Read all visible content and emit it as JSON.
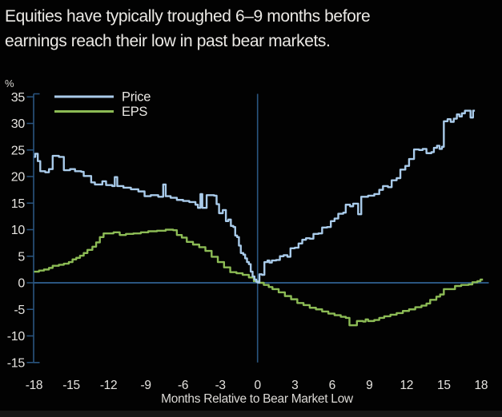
{
  "title": {
    "line1": "Equities have typically troughed 6–9 months before",
    "line2": "earnings reach their low in past bear markets."
  },
  "chart_data": {
    "type": "step-line",
    "title": "",
    "x_axis": {
      "label": "Months Relative to Bear Market Low",
      "ticks": [
        -18,
        -15,
        -12,
        -9,
        -6,
        -3,
        0,
        3,
        6,
        9,
        12,
        15,
        18
      ],
      "range": [
        -18,
        18.6
      ]
    },
    "y_axis": {
      "label": "%",
      "ticks": [
        35,
        30,
        25,
        20,
        15,
        10,
        5,
        0,
        -5,
        -10,
        -15
      ],
      "range": [
        -15,
        35
      ]
    },
    "reference_lines": {
      "horizontal_at": 0,
      "vertical_at": 0
    },
    "legend_position": "top-left-inside",
    "grid": false,
    "colors": {
      "background": "#020202",
      "axis": "#2a5580",
      "tick_text": "#e6e4e0",
      "price": "#a9cbea",
      "eps": "#8cbb55"
    },
    "series": [
      {
        "name": "Price",
        "color": "#a9cbea",
        "points": [
          [
            -18.0,
            23.7
          ],
          [
            -17.9,
            24.3
          ],
          [
            -17.7,
            22.9
          ],
          [
            -17.5,
            21.0
          ],
          [
            -17.1,
            20.8
          ],
          [
            -16.8,
            21.4
          ],
          [
            -16.5,
            23.9
          ],
          [
            -16.0,
            23.7
          ],
          [
            -15.6,
            21.2
          ],
          [
            -15.1,
            21.4
          ],
          [
            -14.7,
            21.0
          ],
          [
            -14.2,
            20.9
          ],
          [
            -14.0,
            20.1
          ],
          [
            -13.4,
            18.9
          ],
          [
            -13.1,
            18.5
          ],
          [
            -12.5,
            19.1
          ],
          [
            -12.2,
            18.4
          ],
          [
            -11.7,
            18.2
          ],
          [
            -11.5,
            19.9
          ],
          [
            -11.3,
            18.2
          ],
          [
            -10.8,
            17.9
          ],
          [
            -10.2,
            17.6
          ],
          [
            -9.6,
            17.2
          ],
          [
            -9.1,
            16.3
          ],
          [
            -8.6,
            16.5
          ],
          [
            -8.0,
            16.2
          ],
          [
            -7.6,
            18.5
          ],
          [
            -7.4,
            16.3
          ],
          [
            -7.0,
            16.0
          ],
          [
            -6.5,
            15.6
          ],
          [
            -6.0,
            15.4
          ],
          [
            -5.5,
            15.2
          ],
          [
            -5.0,
            14.7
          ],
          [
            -4.8,
            14.1
          ],
          [
            -4.6,
            16.7
          ],
          [
            -4.45,
            14.1
          ],
          [
            -4.1,
            16.5
          ],
          [
            -3.5,
            16.4
          ],
          [
            -3.3,
            14.8
          ],
          [
            -3.1,
            13.1
          ],
          [
            -2.8,
            13.7
          ],
          [
            -2.55,
            11.6
          ],
          [
            -2.35,
            11.9
          ],
          [
            -2.15,
            10.7
          ],
          [
            -1.95,
            10.5
          ],
          [
            -1.8,
            8.9
          ],
          [
            -1.65,
            8.6
          ],
          [
            -1.5,
            7.0
          ],
          [
            -1.35,
            5.6
          ],
          [
            -1.15,
            5.3
          ],
          [
            -1.0,
            4.6
          ],
          [
            -0.85,
            3.9
          ],
          [
            -0.7,
            3.5
          ],
          [
            -0.55,
            2.1
          ],
          [
            -0.4,
            1.2
          ],
          [
            -0.25,
            0.6
          ],
          [
            -0.1,
            0.2
          ],
          [
            0.0,
            0.05
          ],
          [
            0.15,
            1.6
          ],
          [
            0.35,
            1.5
          ],
          [
            0.55,
            3.9
          ],
          [
            0.8,
            4.2
          ],
          [
            0.95,
            3.8
          ],
          [
            1.15,
            4.2
          ],
          [
            1.5,
            4.3
          ],
          [
            1.8,
            5.0
          ],
          [
            2.1,
            5.2
          ],
          [
            2.4,
            4.9
          ],
          [
            2.65,
            6.5
          ],
          [
            3.0,
            6.6
          ],
          [
            3.3,
            7.4
          ],
          [
            3.6,
            8.1
          ],
          [
            3.9,
            8.4
          ],
          [
            4.2,
            8.3
          ],
          [
            4.5,
            9.2
          ],
          [
            4.9,
            9.3
          ],
          [
            5.2,
            10.4
          ],
          [
            5.6,
            10.5
          ],
          [
            5.9,
            11.6
          ],
          [
            6.2,
            12.1
          ],
          [
            6.5,
            13.0
          ],
          [
            6.9,
            13.2
          ],
          [
            7.1,
            14.7
          ],
          [
            7.45,
            14.4
          ],
          [
            7.7,
            14.9
          ],
          [
            8.1,
            12.9
          ],
          [
            8.35,
            16.2
          ],
          [
            8.9,
            16.4
          ],
          [
            9.4,
            16.7
          ],
          [
            9.8,
            17.5
          ],
          [
            10.1,
            18.2
          ],
          [
            10.5,
            18.0
          ],
          [
            10.8,
            19.3
          ],
          [
            11.2,
            19.7
          ],
          [
            11.5,
            21.3
          ],
          [
            11.9,
            22.0
          ],
          [
            12.2,
            23.3
          ],
          [
            12.6,
            25.1
          ],
          [
            13.0,
            25.0
          ],
          [
            13.3,
            25.2
          ],
          [
            13.6,
            24.4
          ],
          [
            14.0,
            24.6
          ],
          [
            14.2,
            25.4
          ],
          [
            14.45,
            25.8
          ],
          [
            14.65,
            25.2
          ],
          [
            14.85,
            25.6
          ],
          [
            15.0,
            30.4
          ],
          [
            15.3,
            30.8
          ],
          [
            15.55,
            30.3
          ],
          [
            15.8,
            30.9
          ],
          [
            16.05,
            31.7
          ],
          [
            16.25,
            31.3
          ],
          [
            16.45,
            31.9
          ],
          [
            16.7,
            32.4
          ],
          [
            17.15,
            31.1
          ],
          [
            17.35,
            32.4
          ],
          [
            17.5,
            32.4
          ]
        ]
      },
      {
        "name": "EPS",
        "color": "#8cbb55",
        "points": [
          [
            -18.0,
            2.1
          ],
          [
            -17.6,
            2.3
          ],
          [
            -17.2,
            2.5
          ],
          [
            -16.8,
            2.8
          ],
          [
            -16.5,
            3.2
          ],
          [
            -16.0,
            3.4
          ],
          [
            -15.6,
            3.6
          ],
          [
            -15.2,
            3.9
          ],
          [
            -14.9,
            4.4
          ],
          [
            -14.6,
            4.7
          ],
          [
            -14.3,
            5.1
          ],
          [
            -14.0,
            5.6
          ],
          [
            -13.7,
            6.2
          ],
          [
            -13.3,
            6.8
          ],
          [
            -13.0,
            7.6
          ],
          [
            -12.7,
            8.6
          ],
          [
            -12.4,
            9.3
          ],
          [
            -11.6,
            9.5
          ],
          [
            -11.1,
            9.0
          ],
          [
            -10.6,
            9.2
          ],
          [
            -10.0,
            9.3
          ],
          [
            -9.4,
            9.5
          ],
          [
            -8.8,
            9.7
          ],
          [
            -8.1,
            9.8
          ],
          [
            -7.4,
            10.0
          ],
          [
            -6.8,
            9.9
          ],
          [
            -6.5,
            9.0
          ],
          [
            -6.1,
            8.5
          ],
          [
            -5.7,
            7.7
          ],
          [
            -5.2,
            7.2
          ],
          [
            -4.7,
            6.7
          ],
          [
            -4.2,
            6.0
          ],
          [
            -3.7,
            4.9
          ],
          [
            -3.2,
            3.9
          ],
          [
            -2.7,
            2.9
          ],
          [
            -2.2,
            2.0
          ],
          [
            -1.7,
            1.8
          ],
          [
            -1.2,
            1.5
          ],
          [
            -0.7,
            1.0
          ],
          [
            -0.3,
            0.3
          ],
          [
            0.1,
            0.0
          ],
          [
            0.5,
            -0.4
          ],
          [
            0.9,
            -0.8
          ],
          [
            1.2,
            -1.2
          ],
          [
            1.7,
            -1.8
          ],
          [
            2.2,
            -2.5
          ],
          [
            2.7,
            -3.1
          ],
          [
            3.2,
            -3.8
          ],
          [
            3.7,
            -4.2
          ],
          [
            4.2,
            -4.7
          ],
          [
            4.7,
            -5.0
          ],
          [
            5.2,
            -5.4
          ],
          [
            5.7,
            -5.8
          ],
          [
            6.2,
            -6.1
          ],
          [
            6.7,
            -6.4
          ],
          [
            7.1,
            -6.6
          ],
          [
            7.4,
            -8.0
          ],
          [
            8.0,
            -7.2
          ],
          [
            8.5,
            -7.3
          ],
          [
            8.7,
            -6.9
          ],
          [
            8.9,
            -7.2
          ],
          [
            9.4,
            -7.0
          ],
          [
            9.8,
            -6.6
          ],
          [
            10.2,
            -6.3
          ],
          [
            10.7,
            -6.0
          ],
          [
            11.2,
            -5.7
          ],
          [
            11.7,
            -5.3
          ],
          [
            12.2,
            -5.0
          ],
          [
            12.7,
            -4.6
          ],
          [
            13.2,
            -4.3
          ],
          [
            13.6,
            -3.9
          ],
          [
            13.9,
            -3.2
          ],
          [
            14.4,
            -2.6
          ],
          [
            14.7,
            -2.2
          ],
          [
            15.0,
            -1.2
          ],
          [
            15.9,
            -0.6
          ],
          [
            16.4,
            -0.4
          ],
          [
            17.0,
            -0.3
          ],
          [
            17.3,
            0.1
          ],
          [
            17.7,
            0.3
          ],
          [
            17.95,
            0.6
          ],
          [
            18.15,
            0.6
          ]
        ]
      }
    ]
  }
}
